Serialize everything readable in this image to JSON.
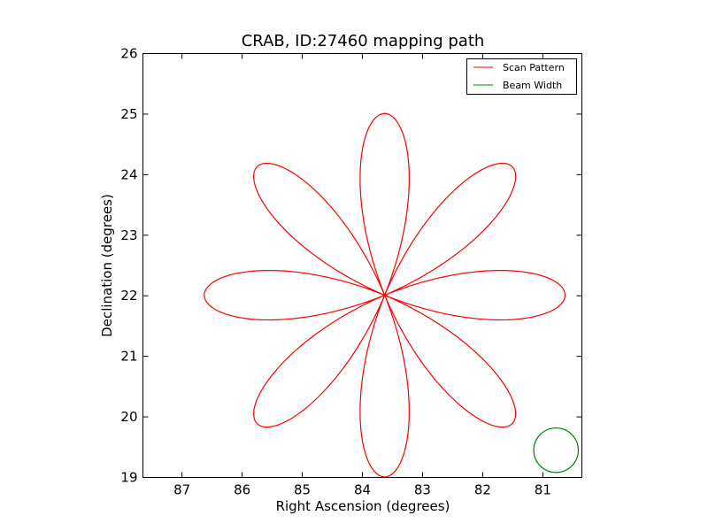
{
  "chart_data": {
    "type": "line",
    "title": "CRAB, ID:27460 mapping path",
    "xlabel": "Right Ascension (degrees)",
    "ylabel": "Declination (degrees)",
    "xlim": [
      87.65,
      80.35
    ],
    "ylim": [
      19,
      26
    ],
    "x_inverted": true,
    "xticks": [
      87,
      86,
      85,
      84,
      83,
      82,
      81
    ],
    "yticks": [
      19,
      20,
      21,
      22,
      23,
      24,
      25,
      26
    ],
    "grid": false,
    "legend_position": "top-right",
    "series": [
      {
        "name": "Scan Pattern",
        "color": "#ff0000",
        "shape": "rose",
        "center": [
          83.63,
          22.01
        ],
        "petals": 8,
        "petal_length": 3.0,
        "petal_width_deg": 22
      },
      {
        "name": "Beam Width",
        "color": "#008000",
        "shape": "circle",
        "center": [
          80.78,
          19.45
        ],
        "radius": 0.37
      }
    ]
  }
}
